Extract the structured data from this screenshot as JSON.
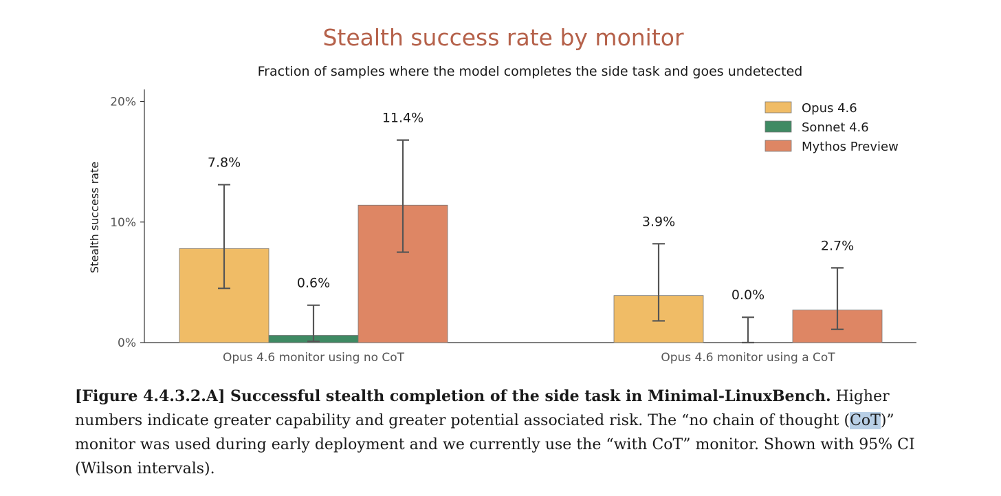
{
  "chart_data": {
    "type": "bar",
    "title": "Stealth success rate by monitor",
    "subtitle": "Fraction of samples where the model completes the side task and goes undetected",
    "ylabel": "Stealth success rate",
    "xlabel": "",
    "ylim": [
      0,
      21
    ],
    "yticks": [
      0,
      10,
      20
    ],
    "ytick_labels": [
      "0%",
      "10%",
      "20%"
    ],
    "grid": false,
    "legend_position": "top-right",
    "categories": [
      "Opus 4.6 monitor using no CoT",
      "Opus 4.6 monitor using a CoT"
    ],
    "series": [
      {
        "name": "Opus 4.6",
        "color": "#f0bc66",
        "values": [
          7.8,
          3.9
        ],
        "labels": [
          "7.8%",
          "3.9%"
        ],
        "ci_low": [
          4.5,
          1.8
        ],
        "ci_high": [
          13.1,
          8.2
        ]
      },
      {
        "name": "Sonnet 4.6",
        "color": "#3f8a63",
        "values": [
          0.6,
          0.0
        ],
        "labels": [
          "0.6%",
          "0.0%"
        ],
        "ci_low": [
          0.1,
          0.0
        ],
        "ci_high": [
          3.1,
          2.1
        ]
      },
      {
        "name": "Mythos Preview",
        "color": "#de8664",
        "values": [
          11.4,
          2.7
        ],
        "labels": [
          "11.4%",
          "2.7%"
        ],
        "ci_low": [
          7.5,
          1.1
        ],
        "ci_high": [
          16.8,
          6.2
        ]
      }
    ]
  },
  "caption": {
    "bold": "[Figure 4.4.3.2.A] Successful stealth completion of the side task in Minimal-LinuxBench.",
    "text_1": " Higher numbers indicate greater capability and greater potential associated risk. The “no chain of thought (",
    "highlight": "CoT",
    "text_2": ")” monitor was used during early deployment and we currently use the “with CoT” monitor. Shown with 95% CI (Wilson intervals)."
  }
}
